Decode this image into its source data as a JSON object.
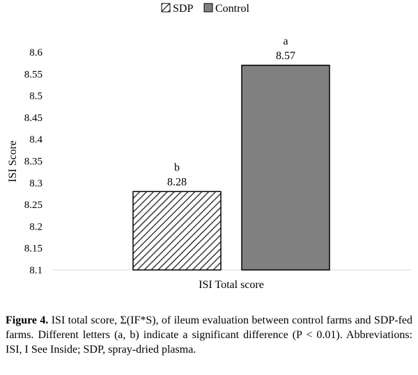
{
  "chart_data": {
    "type": "bar",
    "categories": [
      "ISI Total score"
    ],
    "series": [
      {
        "name": "SDP",
        "values": [
          8.28
        ],
        "value_labels": [
          "8.28"
        ],
        "letters": [
          "b"
        ],
        "color": "#ffffff",
        "pattern": "diagonal-hatch"
      },
      {
        "name": "Control",
        "values": [
          8.57
        ],
        "value_labels": [
          "8.57"
        ],
        "letters": [
          "a"
        ],
        "color": "#808080",
        "pattern": "solid"
      }
    ],
    "xlabel": "ISI Total score",
    "ylabel": "ISI Score",
    "ylim": [
      8.1,
      8.6
    ],
    "yticks": [
      "8.1",
      "8.15",
      "8.2",
      "8.25",
      "8.3",
      "8.35",
      "8.4",
      "8.45",
      "8.5",
      "8.55",
      "8.6"
    ],
    "legend_position": "top",
    "grid": false
  },
  "caption": {
    "label": "Figure 4.",
    "text": " ISI total score, Σ(IF*S), of ileum evaluation between control farms and SDP-fed farms. Different letters (a, b) indicate a significant difference (P < 0.01). Abbreviations: ISI, I See Inside; SDP, spray-dried plasma."
  }
}
